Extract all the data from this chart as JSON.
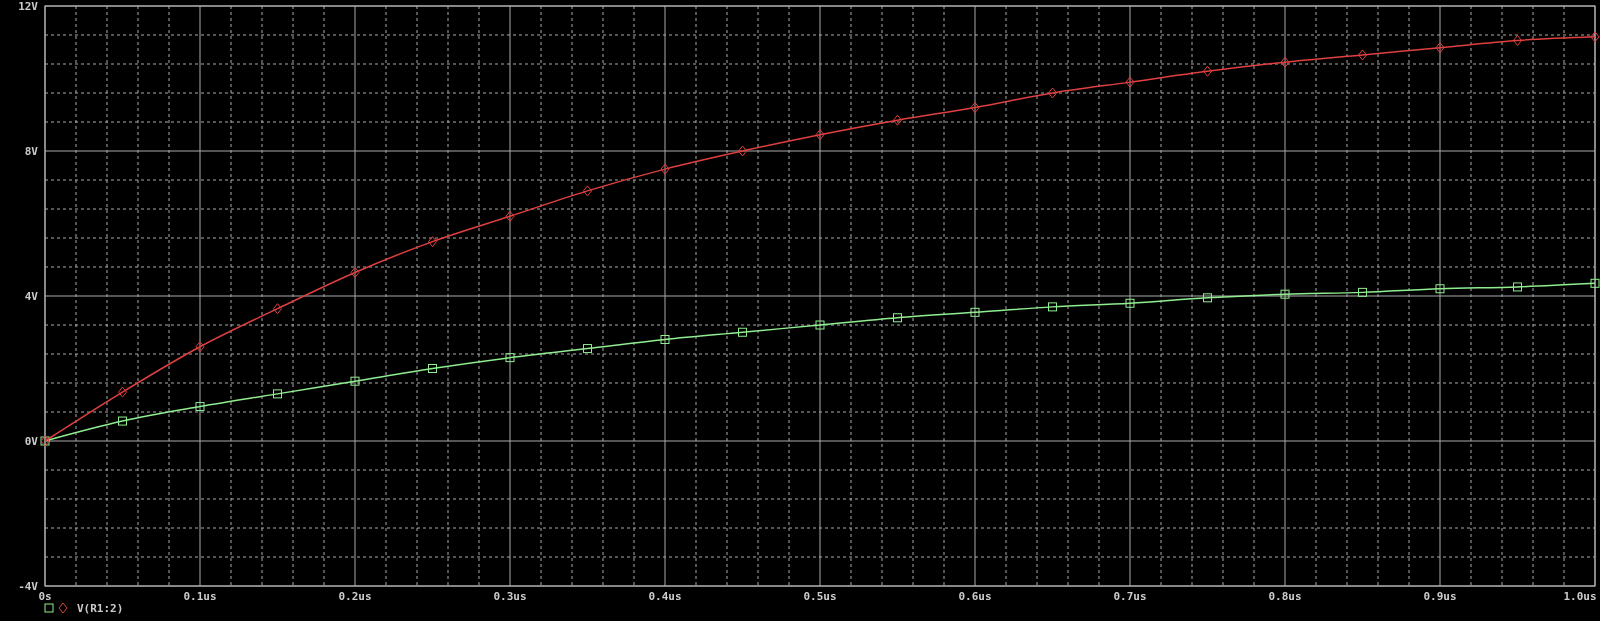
{
  "chart_data": {
    "type": "line",
    "x": [
      0,
      0.05,
      0.1,
      0.15,
      0.2,
      0.25,
      0.3,
      0.35,
      0.4,
      0.45,
      0.5,
      0.55,
      0.6,
      0.65,
      0.7,
      0.75,
      0.8,
      0.85,
      0.9,
      0.95,
      1.0
    ],
    "series": [
      {
        "color": "#90ee90",
        "marker": "square",
        "values": [
          0,
          0.55,
          0.95,
          1.3,
          1.65,
          2.0,
          2.3,
          2.55,
          2.8,
          3.0,
          3.2,
          3.4,
          3.55,
          3.7,
          3.8,
          3.95,
          4.05,
          4.1,
          4.2,
          4.25,
          4.35
        ]
      },
      {
        "name": "V(R1:2)",
        "color": "#e04040",
        "marker": "diamond",
        "values": [
          0,
          1.35,
          2.6,
          3.65,
          4.65,
          5.5,
          6.2,
          6.9,
          7.5,
          8.0,
          8.45,
          8.85,
          9.2,
          9.6,
          9.9,
          10.2,
          10.45,
          10.65,
          10.85,
          11.05,
          11.15
        ]
      }
    ],
    "xlim": [
      0,
      1.0
    ],
    "xticks": [
      {
        "value": 0,
        "label": "0s"
      },
      {
        "value": 0.02,
        "label": null
      },
      {
        "value": 0.04,
        "label": null
      },
      {
        "value": 0.06,
        "label": null
      },
      {
        "value": 0.08,
        "label": null
      },
      {
        "value": 0.1,
        "label": "0.1us"
      },
      {
        "value": 0.12,
        "label": null
      },
      {
        "value": 0.14,
        "label": null
      },
      {
        "value": 0.16,
        "label": null
      },
      {
        "value": 0.18,
        "label": null
      },
      {
        "value": 0.2,
        "label": "0.2us"
      },
      {
        "value": 0.22,
        "label": null
      },
      {
        "value": 0.24,
        "label": null
      },
      {
        "value": 0.26,
        "label": null
      },
      {
        "value": 0.28,
        "label": null
      },
      {
        "value": 0.3,
        "label": "0.3us"
      },
      {
        "value": 0.32,
        "label": null
      },
      {
        "value": 0.34,
        "label": null
      },
      {
        "value": 0.36,
        "label": null
      },
      {
        "value": 0.38,
        "label": null
      },
      {
        "value": 0.4,
        "label": "0.4us"
      },
      {
        "value": 0.42,
        "label": null
      },
      {
        "value": 0.44,
        "label": null
      },
      {
        "value": 0.46,
        "label": null
      },
      {
        "value": 0.48,
        "label": null
      },
      {
        "value": 0.5,
        "label": "0.5us"
      },
      {
        "value": 0.52,
        "label": null
      },
      {
        "value": 0.54,
        "label": null
      },
      {
        "value": 0.56,
        "label": null
      },
      {
        "value": 0.58,
        "label": null
      },
      {
        "value": 0.6,
        "label": "0.6us"
      },
      {
        "value": 0.62,
        "label": null
      },
      {
        "value": 0.64,
        "label": null
      },
      {
        "value": 0.66,
        "label": null
      },
      {
        "value": 0.68,
        "label": null
      },
      {
        "value": 0.7,
        "label": "0.7us"
      },
      {
        "value": 0.72,
        "label": null
      },
      {
        "value": 0.74,
        "label": null
      },
      {
        "value": 0.76,
        "label": null
      },
      {
        "value": 0.78,
        "label": null
      },
      {
        "value": 0.8,
        "label": "0.8us"
      },
      {
        "value": 0.82,
        "label": null
      },
      {
        "value": 0.84,
        "label": null
      },
      {
        "value": 0.86,
        "label": null
      },
      {
        "value": 0.88,
        "label": null
      },
      {
        "value": 0.9,
        "label": "0.9us"
      },
      {
        "value": 0.92,
        "label": null
      },
      {
        "value": 0.94,
        "label": null
      },
      {
        "value": 0.96,
        "label": null
      },
      {
        "value": 0.98,
        "label": null
      },
      {
        "value": 1.0,
        "label": "1.0us"
      }
    ],
    "ylim": [
      -4,
      12
    ],
    "yticks": [
      {
        "value": -4,
        "label": "-4V"
      },
      {
        "value": -3.2,
        "label": null
      },
      {
        "value": -2.4,
        "label": null
      },
      {
        "value": -1.6,
        "label": null
      },
      {
        "value": -0.8,
        "label": null
      },
      {
        "value": 0,
        "label": "0V"
      },
      {
        "value": 0.8,
        "label": null
      },
      {
        "value": 1.6,
        "label": null
      },
      {
        "value": 2.4,
        "label": null
      },
      {
        "value": 3.2,
        "label": null
      },
      {
        "value": 4,
        "label": "4V"
      },
      {
        "value": 4.8,
        "label": null
      },
      {
        "value": 5.6,
        "label": null
      },
      {
        "value": 6.4,
        "label": null
      },
      {
        "value": 7.2,
        "label": null
      },
      {
        "value": 8,
        "label": "8V"
      },
      {
        "value": 8.8,
        "label": null
      },
      {
        "value": 9.6,
        "label": null
      },
      {
        "value": 10.4,
        "label": null
      },
      {
        "value": 11.2,
        "label": null
      },
      {
        "value": 12,
        "label": "12V"
      }
    ],
    "grid": true,
    "legend": "bottom left"
  }
}
